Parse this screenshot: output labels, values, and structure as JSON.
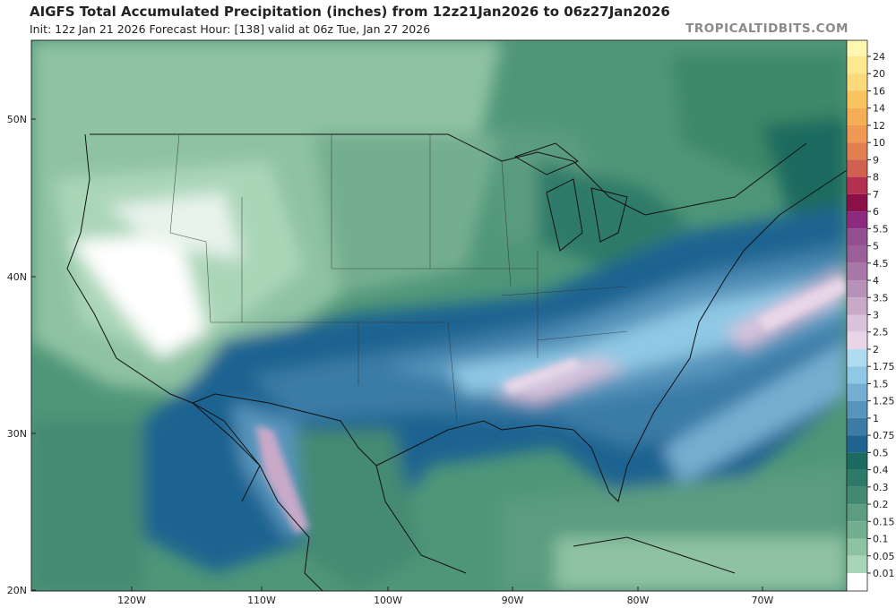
{
  "header": {
    "title": "AIGFS Total Accumulated Precipitation (inches) from 12z21Jan2026 to 06z27Jan2026",
    "subtitle": "Init: 12z Jan 21 2026   Forecast Hour: [138]   valid at 06z Tue, Jan 27 2026",
    "brand": "TROPICALTIDBITS.COM"
  },
  "map": {
    "latitude_labels": [
      "50N",
      "40N",
      "30N",
      "20N"
    ],
    "longitude_labels": [
      "120W",
      "110W",
      "100W",
      "90W",
      "80W",
      "70W"
    ]
  },
  "colorbar": {
    "levels": [
      "24",
      "20",
      "16",
      "14",
      "12",
      "10",
      "9",
      "8",
      "7",
      "6",
      "5.5",
      "5",
      "4.5",
      "4",
      "3.5",
      "3",
      "2.5",
      "2",
      "1.75",
      "1.5",
      "1.25",
      "1",
      "0.75",
      "0.5",
      "0.4",
      "0.3",
      "0.2",
      "0.15",
      "0.1",
      "0.05",
      "0.01"
    ],
    "colors": [
      "#fff7b0",
      "#fde88f",
      "#fcd97a",
      "#f9c460",
      "#f5ae55",
      "#ee9a55",
      "#e08050",
      "#d06050",
      "#b43050",
      "#8b0f48",
      "#8c2a7e",
      "#934f90",
      "#9b5f9a",
      "#a878a9",
      "#b792b8",
      "#c8a9c8",
      "#dcc3dc",
      "#e8d6e8",
      "#b0dcf0",
      "#8ec8e4",
      "#74aed0",
      "#5794bb",
      "#3b7ba6",
      "#1f6491",
      "#1b6a5f",
      "#2e7a68",
      "#448a72",
      "#5c9c80",
      "#73ae8f",
      "#8ec2a2",
      "#aad6b8",
      "#ffffff"
    ]
  }
}
